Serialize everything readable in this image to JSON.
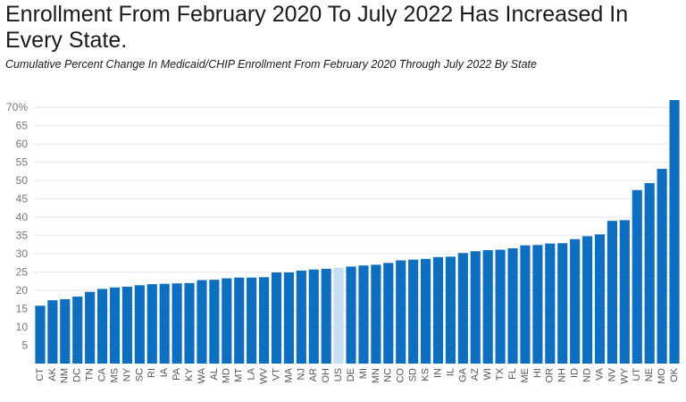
{
  "title": "Enrollment From February 2020 To July 2022 Has Increased In Every State.",
  "subtitle": "Cumulative Percent Change In Medicaid/CHIP Enrollment From February 2020 Through July 2022 By State",
  "colors": {
    "bar": "#0d6fc2",
    "highlight": "#c6dff2",
    "grid": "#e6e6e6"
  },
  "chart_data": {
    "type": "bar",
    "title": "Enrollment From February 2020 To July 2022 Has Increased In Every State.",
    "subtitle": "Cumulative Percent Change In Medicaid/CHIP Enrollment From February 2020 Through July 2022 By State",
    "xlabel": "",
    "ylabel": "",
    "ylim": [
      0,
      72
    ],
    "yticks": [
      5,
      10,
      15,
      20,
      25,
      30,
      35,
      40,
      45,
      50,
      55,
      60,
      65,
      70
    ],
    "ytick_labels": [
      "5",
      "10",
      "15",
      "20",
      "25",
      "30",
      "35",
      "40",
      "45",
      "50",
      "55",
      "60",
      "65",
      "70%"
    ],
    "grid": true,
    "highlight_category": "US",
    "categories": [
      "CT",
      "AK",
      "NM",
      "DC",
      "TN",
      "CA",
      "MS",
      "NY",
      "SC",
      "RI",
      "IA",
      "PA",
      "KY",
      "WA",
      "AL",
      "MD",
      "MT",
      "LA",
      "WV",
      "VT",
      "MA",
      "NJ",
      "AR",
      "OH",
      "US",
      "DE",
      "MI",
      "MN",
      "NC",
      "CO",
      "SD",
      "KS",
      "IN",
      "IL",
      "GA",
      "AZ",
      "WI",
      "TX",
      "FL",
      "ME",
      "HI",
      "OR",
      "NH",
      "ID",
      "ND",
      "VA",
      "NV",
      "WY",
      "UT",
      "NE",
      "MO",
      "OK"
    ],
    "values": [
      15.8,
      17.3,
      17.6,
      18.3,
      19.6,
      20.4,
      20.8,
      21.0,
      21.4,
      21.7,
      21.8,
      21.9,
      22.0,
      22.8,
      22.9,
      23.3,
      23.5,
      23.5,
      23.6,
      24.9,
      24.9,
      25.4,
      25.7,
      25.9,
      26.2,
      26.5,
      26.8,
      27.0,
      27.5,
      28.2,
      28.4,
      28.6,
      29.1,
      29.2,
      30.2,
      30.7,
      31.0,
      31.1,
      31.5,
      32.3,
      32.4,
      32.8,
      32.9,
      34.0,
      34.8,
      35.3,
      39.0,
      39.2,
      47.4,
      49.3,
      53.2,
      72.0
    ]
  }
}
